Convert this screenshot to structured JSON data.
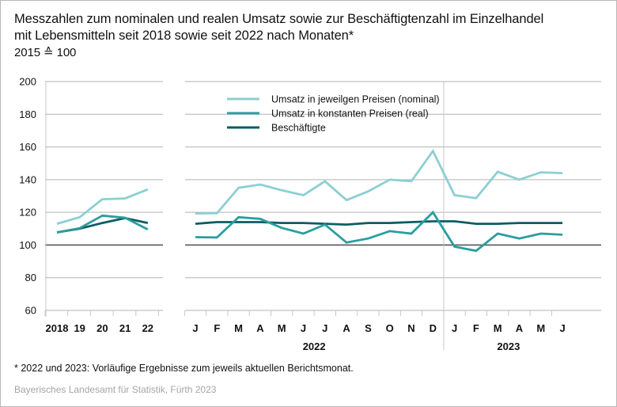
{
  "title": {
    "line1": "Messzahlen zum nominalen und realen Umsatz sowie zur Beschäftigtenzahl im Einzelhandel",
    "line2": "mit Lebensmitteln seit 2018 sowie seit 2022 nach Monaten*",
    "unit": "2015 ≙ 100"
  },
  "footnote": "* 2022 und 2023: Vorläufige Ergebnisse zum jeweils aktuellen Berichtsmonat.",
  "source": "Bayerisches Landesamt für Statistik, Fürth 2023",
  "colors": {
    "nominal": "#8ccfd3",
    "real": "#2a9d9f",
    "employment": "#0d5c63",
    "grid": "#b3b3b3",
    "baseline": "#555555"
  },
  "chart_data": {
    "type": "line",
    "title": "Messzahlen zum nominalen und realen Umsatz sowie zur Beschäftigtenzahl im Einzelhandel mit Lebensmitteln seit 2018 sowie seit 2022 nach Monaten*",
    "ylabel": "2015 ≙ 100",
    "ylim": [
      60,
      200
    ],
    "yticks": [
      "60",
      "80",
      "100",
      "120",
      "140",
      "160",
      "180",
      "200"
    ],
    "grid": true,
    "legend_position": "top-center",
    "legend": [
      "Umsatz in jeweilgen Preisen (nominal)",
      "Umsatz in konstanten Preisen (real)",
      "Beschäftigte"
    ],
    "annual": {
      "categories": [
        "2018",
        "19",
        "20",
        "21",
        "22"
      ],
      "series": [
        {
          "name": "Umsatz in jeweilgen Preisen (nominal)",
          "key": "nominal",
          "values": [
            113,
            117,
            128,
            128.5,
            134
          ]
        },
        {
          "name": "Umsatz in konstanten Preisen (real)",
          "key": "real",
          "values": [
            107.7,
            110.3,
            118,
            116.7,
            109.5
          ]
        },
        {
          "name": "Beschäftigte",
          "key": "employment",
          "values": [
            107.7,
            110,
            113.5,
            116.5,
            113.5
          ]
        }
      ]
    },
    "monthly": {
      "categories": [
        "J",
        "F",
        "M",
        "A",
        "M",
        "J",
        "J",
        "A",
        "S",
        "O",
        "N",
        "D",
        "J",
        "F",
        "M",
        "A",
        "M",
        "J"
      ],
      "years": [
        {
          "label": "2022",
          "months": 12
        },
        {
          "label": "2023",
          "months": 6
        }
      ],
      "series": [
        {
          "name": "Umsatz in jeweilgen Preisen (nominal)",
          "key": "nominal",
          "values": [
            119.3,
            119.5,
            135,
            137,
            133.5,
            130.5,
            139,
            127.5,
            132.8,
            140,
            139,
            157.5,
            130.5,
            128.7,
            144.8,
            140,
            144.5,
            144
          ]
        },
        {
          "name": "Umsatz in konstanten Preisen (real)",
          "key": "real",
          "values": [
            104.8,
            104.6,
            117,
            116,
            110.5,
            107,
            112.5,
            101.5,
            104,
            108.5,
            107,
            120,
            99,
            96.5,
            107,
            104,
            107,
            106.3
          ]
        },
        {
          "name": "Beschäftigte",
          "key": "employment",
          "values": [
            113,
            114,
            114,
            114,
            113.5,
            113.5,
            113,
            112.5,
            113.5,
            113.5,
            114,
            114.5,
            114.5,
            113,
            113,
            113.5,
            113.5,
            113.5
          ]
        }
      ]
    }
  }
}
